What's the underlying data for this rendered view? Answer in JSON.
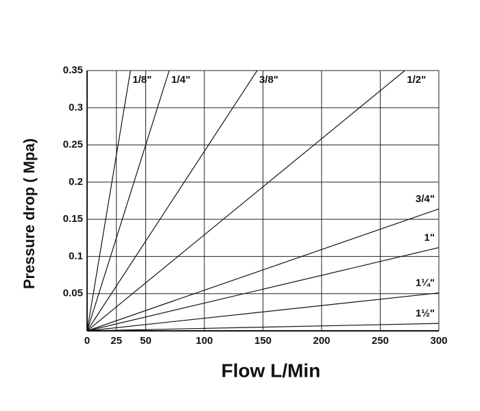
{
  "chart_data": {
    "type": "line",
    "x_label": "Flow L/Min",
    "y_label": "Pressure drop ( Mpa)",
    "xlim": [
      0,
      300
    ],
    "xticks": [
      0,
      25,
      50,
      100,
      150,
      200,
      250,
      300
    ],
    "ylim": [
      0,
      0.35
    ],
    "yticks": [
      0.05,
      0.1,
      0.15,
      0.2,
      0.25,
      0.3,
      0.35
    ],
    "grid": true,
    "color": "#111111",
    "series": [
      {
        "name": "1/8\"",
        "x": [
          0,
          37
        ],
        "values": [
          0,
          0.35
        ]
      },
      {
        "name": "1/4\"",
        "x": [
          0,
          70
        ],
        "values": [
          0,
          0.35
        ]
      },
      {
        "name": "3/8\"",
        "x": [
          0,
          145
        ],
        "values": [
          0,
          0.35
        ]
      },
      {
        "name": "1/2\"",
        "x": [
          0,
          271
        ],
        "values": [
          0,
          0.35
        ]
      },
      {
        "name": "3/4\"",
        "x": [
          0,
          300
        ],
        "values": [
          0,
          0.164
        ]
      },
      {
        "name": "1\"",
        "x": [
          0,
          300
        ],
        "values": [
          0,
          0.112
        ]
      },
      {
        "name": "1¼\"",
        "x": [
          0,
          300
        ],
        "values": [
          0,
          0.051
        ]
      },
      {
        "name": "1½\"",
        "x": [
          0,
          300
        ],
        "values": [
          0,
          0.01
        ]
      }
    ]
  }
}
